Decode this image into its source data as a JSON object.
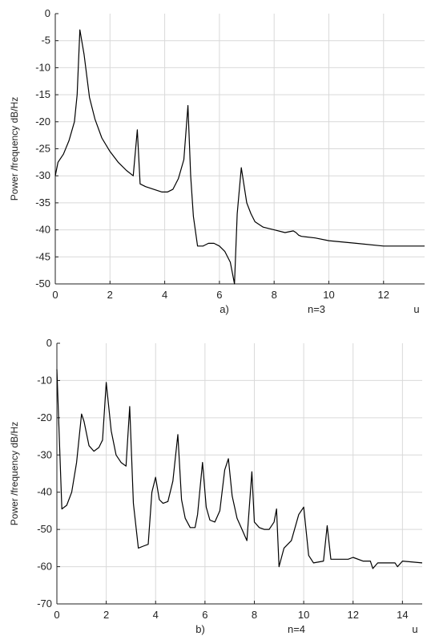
{
  "chart_data": [
    {
      "type": "line",
      "ylabel": "Power /frequency dB/Hz",
      "xlabel": "u",
      "panel_label": "a)",
      "annotation": "n=3",
      "xlim": [
        0,
        13.5
      ],
      "ylim": [
        -50,
        0
      ],
      "xticks": [
        0,
        2,
        4,
        6,
        8,
        10,
        12
      ],
      "yticks": [
        0,
        -5,
        -10,
        -15,
        -20,
        -25,
        -30,
        -35,
        -40,
        -45,
        -50
      ],
      "grid": true,
      "x": [
        0,
        0.1,
        0.3,
        0.5,
        0.7,
        0.8,
        0.9,
        1.05,
        1.25,
        1.45,
        1.7,
        2.0,
        2.3,
        2.6,
        2.85,
        3.0,
        3.1,
        3.3,
        3.6,
        3.9,
        4.1,
        4.3,
        4.5,
        4.7,
        4.85,
        4.95,
        5.05,
        5.2,
        5.4,
        5.6,
        5.8,
        6.0,
        6.2,
        6.4,
        6.55,
        6.65,
        6.8,
        7.0,
        7.15,
        7.3,
        7.6,
        8.0,
        8.4,
        8.7,
        8.8,
        8.9,
        9.0,
        9.5,
        10.0,
        11.0,
        12.0,
        13.0,
        13.5
      ],
      "y": [
        -30,
        -27.5,
        -26,
        -23.5,
        -20,
        -15,
        -3,
        -7.5,
        -15.5,
        -19.5,
        -23,
        -25.5,
        -27.5,
        -29,
        -30,
        -21.5,
        -31.5,
        -32,
        -32.5,
        -33,
        -33,
        -32.5,
        -30.5,
        -27,
        -17,
        -30,
        -37.5,
        -43,
        -43,
        -42.5,
        -42.5,
        -43,
        -44,
        -46,
        -50,
        -37,
        -28.5,
        -35,
        -37,
        -38.5,
        -39.5,
        -40,
        -40.5,
        -40.2,
        -40.5,
        -41,
        -41.2,
        -41.5,
        -42,
        -42.5,
        -43,
        -43,
        -43
      ],
      "axis_label_positions": "bottom-right"
    },
    {
      "type": "line",
      "ylabel": "Power /frequency dB/Hz",
      "xlabel": "u",
      "panel_label": "b)",
      "annotation": "n=4",
      "xlim": [
        0,
        14.8
      ],
      "ylim": [
        -70,
        0
      ],
      "xticks": [
        0,
        2,
        4,
        6,
        8,
        10,
        12,
        14
      ],
      "yticks": [
        0,
        -10,
        -20,
        -30,
        -40,
        -50,
        -60,
        -70
      ],
      "grid": true,
      "x": [
        0,
        0.2,
        0.4,
        0.6,
        0.8,
        1.0,
        1.1,
        1.3,
        1.5,
        1.7,
        1.85,
        2.0,
        2.2,
        2.4,
        2.6,
        2.8,
        2.95,
        3.1,
        3.3,
        3.5,
        3.7,
        3.85,
        4.0,
        4.15,
        4.3,
        4.5,
        4.7,
        4.9,
        5.05,
        5.2,
        5.4,
        5.6,
        5.7,
        5.9,
        6.05,
        6.2,
        6.4,
        6.6,
        6.8,
        6.95,
        7.1,
        7.3,
        7.5,
        7.7,
        7.9,
        8.0,
        8.2,
        8.4,
        8.6,
        8.8,
        8.9,
        9.0,
        9.2,
        9.5,
        9.8,
        10.0,
        10.2,
        10.4,
        10.8,
        10.95,
        11.1,
        11.6,
        11.8,
        12.0,
        12.4,
        12.7,
        12.8,
        13.0,
        13.4,
        13.7,
        13.8,
        14.0,
        14.8
      ],
      "y": [
        -7,
        -44.5,
        -43.5,
        -40,
        -32,
        -19,
        -21,
        -27.5,
        -29,
        -28,
        -26,
        -10.5,
        -23.5,
        -30,
        -32,
        -33,
        -17,
        -43,
        -55,
        -54.5,
        -54,
        -40,
        -36,
        -42,
        -43,
        -42.5,
        -37,
        -24.5,
        -42,
        -47,
        -49.5,
        -49.5,
        -46,
        -32,
        -44,
        -47.5,
        -48,
        -45,
        -34,
        -31,
        -41,
        -47,
        -50,
        -53,
        -34.5,
        -48,
        -49.5,
        -50,
        -50,
        -48,
        -44.5,
        -60,
        -55,
        -53,
        -46,
        -44,
        -57,
        -59,
        -58.5,
        -49,
        -58,
        -58,
        -58,
        -57.5,
        -58.5,
        -58.5,
        -60.5,
        -59,
        -59,
        -59,
        -60,
        -58.5,
        -59
      ]
    }
  ]
}
